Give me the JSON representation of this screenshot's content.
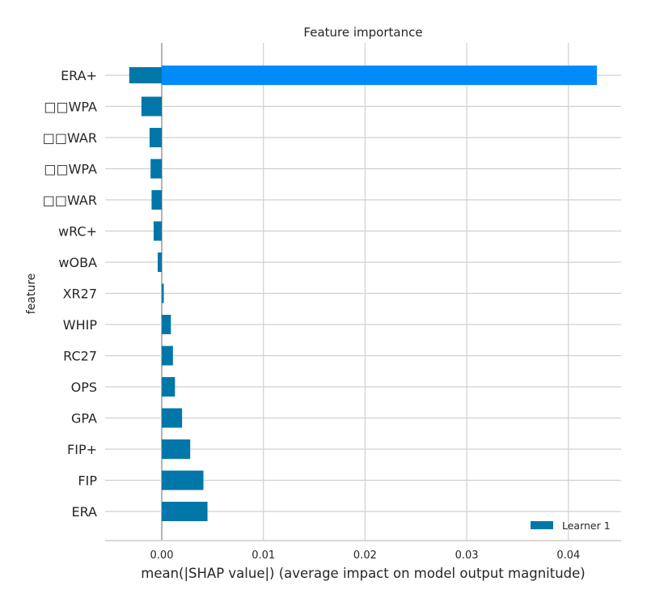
{
  "chart_data": {
    "type": "bar",
    "orientation": "horizontal",
    "title": "Feature importance",
    "xlabel": "mean(|SHAP value|) (average impact on model output magnitude)",
    "ylabel": "feature",
    "xlim": [
      -0.0056,
      0.0452
    ],
    "xticks": [
      "0.00",
      "0.01",
      "0.02",
      "0.03",
      "0.04"
    ],
    "xtick_values": [
      0.0,
      0.01,
      0.02,
      0.03,
      0.04
    ],
    "grid": true,
    "legend": {
      "position": "bottom-right",
      "entries": [
        "Learner 1"
      ]
    },
    "colors": {
      "default": "#0077a8",
      "highlight": "#008bfb"
    },
    "categories": [
      "ERA+",
      "□□WPA",
      "□□WAR",
      "□□WPA",
      "□□WAR",
      "wRC+",
      "wOBA",
      "XR27",
      "WHIP",
      "RC27",
      "OPS",
      "GPA",
      "FIP+",
      "FIP",
      "ERA"
    ],
    "series": [
      {
        "name": "Learner 1",
        "values": [
          0.0428,
          -0.002,
          -0.0012,
          -0.0011,
          -0.001,
          -0.0008,
          -0.0004,
          0.0002,
          0.0009,
          0.0011,
          0.0013,
          0.002,
          0.0028,
          0.0041,
          0.0045
        ]
      }
    ],
    "extra_bars": [
      {
        "category": "ERA+",
        "value": -0.0032
      }
    ],
    "highlight_index": 0
  }
}
